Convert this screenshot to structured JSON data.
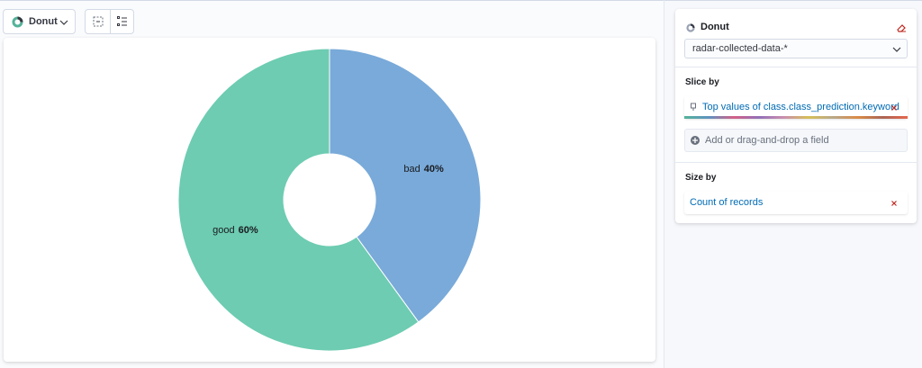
{
  "toolbar": {
    "chart_type": "Donut"
  },
  "chart_data": {
    "type": "donut",
    "categories": [
      "bad",
      "good"
    ],
    "values": [
      40,
      60
    ],
    "value_labels": [
      "40%",
      "60%"
    ],
    "colors": [
      "#79aad9",
      "#6dccb1"
    ]
  },
  "config_panel": {
    "title": "Donut",
    "index_pattern": "radar-collected-data-*",
    "slice_by": {
      "label": "Slice by",
      "field": "Top values of class.class_prediction.keyword",
      "add": "Add or drag-and-drop a field"
    },
    "size_by": {
      "label": "Size by",
      "field": "Count of records"
    }
  }
}
